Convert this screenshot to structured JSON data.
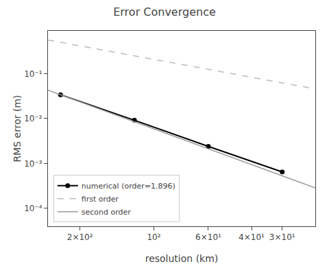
{
  "chart_data": {
    "type": "line",
    "title": "Error Convergence",
    "xlabel": "resolution (km)",
    "ylabel": "RMS error (m)",
    "log": true,
    "grid": false,
    "legend": "lower left",
    "xlim": [
      270,
      22
    ],
    "ylim": [
      4e-05,
      0.9
    ],
    "xticks": [
      {
        "value": 200,
        "label": "2×10²"
      },
      {
        "value": 100,
        "label": "10²"
      },
      {
        "value": 60,
        "label": "6×10¹"
      },
      {
        "value": 40,
        "label": "4×10¹"
      },
      {
        "value": 30,
        "label": "3×10¹"
      }
    ],
    "yticks": [
      {
        "value": 0.0001,
        "label": "10⁻⁴"
      },
      {
        "value": 0.001,
        "label": "10⁻³"
      },
      {
        "value": 0.01,
        "label": "10⁻²"
      },
      {
        "value": 0.1,
        "label": "10⁻¹"
      }
    ],
    "series": [
      {
        "name": "numerical (order=1.896)",
        "color": "black",
        "marker": "o",
        "line_style": "solid",
        "x": [
          240,
          120,
          60,
          30
        ],
        "values": [
          0.034,
          0.0092,
          0.0024,
          0.00065
        ]
      },
      {
        "name": "first order",
        "color": "#bbbbbb",
        "line_style": "dashed",
        "x": [
          270,
          22
        ],
        "values": [
          0.5625,
          0.04583333333333334
        ]
      },
      {
        "name": "second order",
        "color": "#999999",
        "line_style": "solid",
        "x": [
          270,
          22
        ],
        "values": [
          0.04303125,
          0.00028569444444444443
        ]
      }
    ]
  }
}
